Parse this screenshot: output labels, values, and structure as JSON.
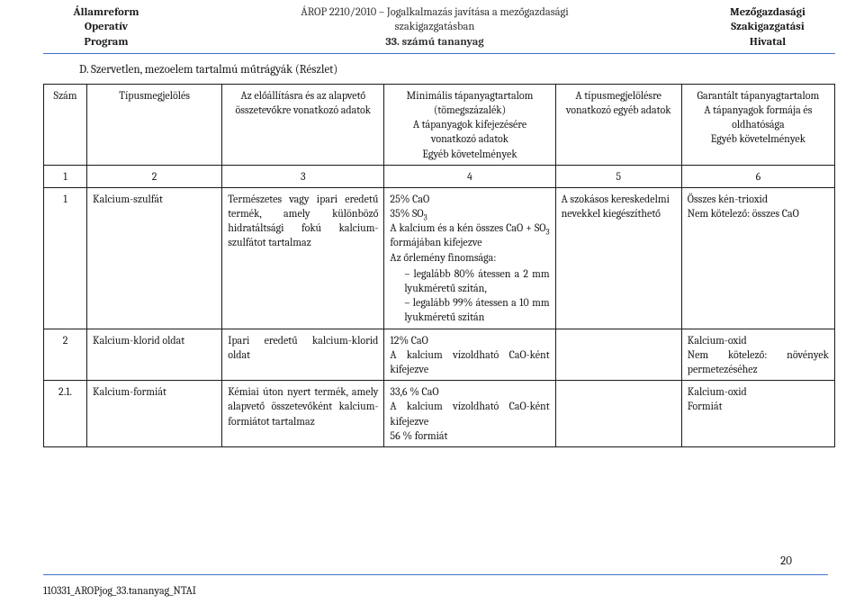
{
  "header": {
    "left_line1": "Államreform",
    "left_line2": "Operatív",
    "left_line3": "Program",
    "mid_line1": "ÁROP 2210/2010 – Jogalkalmazás javítása a mezőgazdasági",
    "mid_line2": "szakigazgatásban",
    "mid_line3_bold": "33. számú tananyag",
    "right_line1": "Mezőgazdasági",
    "right_line2": "Szakigazgatási",
    "right_line3": "Hivatal"
  },
  "section_title": "D. Szervetlen, mezoelem tartalmú műtrágyák (Részlet)",
  "columns": {
    "c1": "Szám",
    "c2": "Típusmegjelölés",
    "c3": "Az előállításra és az alapvető összetevőkre vonatkozó adatok",
    "c4": "Minimális tápanyagtartalom (tömegszázalék)\nA tápanyagok kifejezésére vonatkozó adatok\nEgyéb követelmények",
    "c5": "A típusmegjelölésre vonatkozó egyéb adatok",
    "c6": "Garantált tápanyagtartalom\nA tápanyagok formája és oldhatósága\nEgyéb követelmények"
  },
  "numrow": {
    "n1": "1",
    "n2": "2",
    "n3": "3",
    "n4": "4",
    "n5": "5",
    "n6": "6"
  },
  "rows": [
    {
      "num": "1",
      "name": "Kalcium-szulfát",
      "prep": "Természetes vagy ipari eredetű termék, amely különböző hidratáltsági fokú kalcium-szulfátot tartalmaz",
      "min_lines": [
        "25% CaO",
        "35% SO",
        "A kalcium és a kén összes CaO + SO",
        " formájában kifejezve",
        "Az őrlemény finomsága:"
      ],
      "min_bullets": [
        "legalább 80% átessen a 2 mm lyukméretű szitán,",
        "legalább 99% átessen a 10 mm lyukméretű szitán"
      ],
      "other": "A szokásos kereskedelmi nevekkel kiegészíthető",
      "guar_lines": [
        "Összes kén-trioxid",
        "Nem kötelező: összes CaO"
      ]
    },
    {
      "num": "2",
      "name": "Kalcium-klorid oldat",
      "prep": "Ipari eredetű kalcium-klorid oldat",
      "min_lines": [
        "12% CaO",
        "A kalcium vízoldható CaO-ként kifejezve"
      ],
      "min_bullets": [],
      "other": "",
      "guar_lines": [
        "Kalcium-oxid",
        "Nem kötelező: növények permetezéséhez"
      ]
    },
    {
      "num": "2.1.",
      "name": "Kalcium-formiát",
      "prep": "Kémiai úton nyert termék, amely alapvető összetevőként kalcium-formiátot tartalmaz",
      "min_lines": [
        "33,6 % CaO",
        "A kalcium vízoldható CaO-ként kifejezve",
        "56 % formiát"
      ],
      "min_bullets": [],
      "other": "",
      "guar_lines": [
        "Kalcium-oxid",
        "Formiát"
      ]
    }
  ],
  "page_number": "20",
  "footer": "110331_AROPjog_33.tananyag_NTAI"
}
